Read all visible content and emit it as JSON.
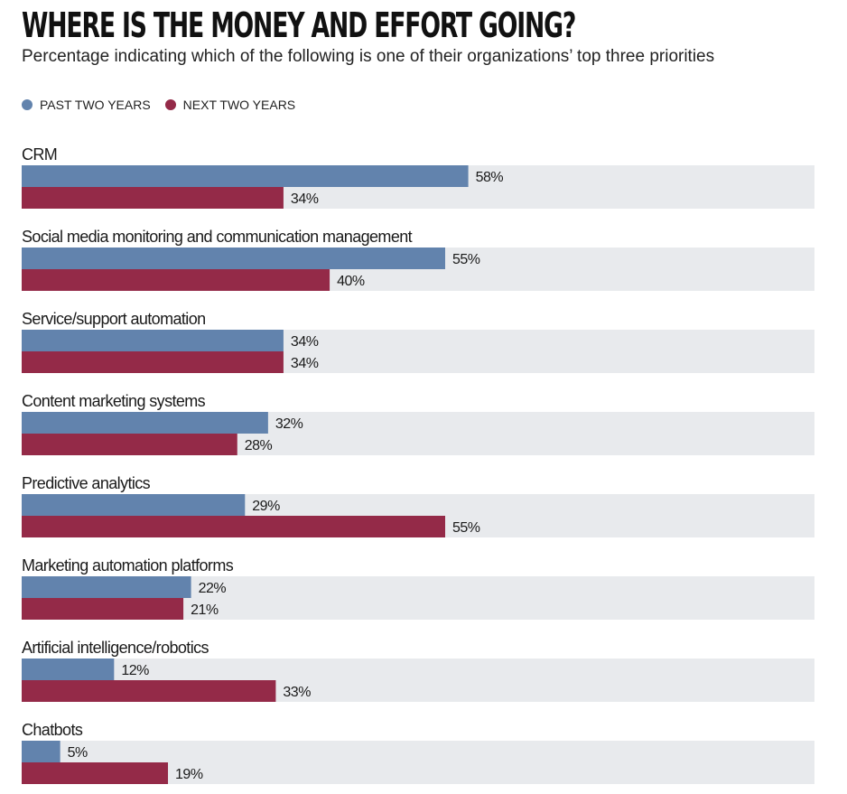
{
  "chart_data": {
    "type": "bar",
    "orientation": "horizontal",
    "title": "WHERE IS THE MONEY AND EFFORT GOING?",
    "subtitle": "Percentage indicating which of the following is one of their organizations’ top three priorities",
    "xlim": [
      0,
      100
    ],
    "categories": [
      "CRM",
      "Social media monitoring and communication management",
      "Service/support automation",
      "Content marketing systems",
      "Predictive analytics",
      "Marketing automation platforms",
      "Artificial intelligence/robotics",
      "Chatbots"
    ],
    "series": [
      {
        "name": "PAST TWO YEARS",
        "values": [
          58,
          55,
          34,
          32,
          29,
          22,
          12,
          5
        ],
        "labels": [
          "58%",
          "55%",
          "34%",
          "32%",
          "29%",
          "22%",
          "12%",
          "5%"
        ],
        "color": "#6283ad"
      },
      {
        "name": "NEXT TWO YEARS",
        "values": [
          34,
          40,
          34,
          28,
          55,
          21,
          33,
          19
        ],
        "labels": [
          "34%",
          "40%",
          "34%",
          "28%",
          "55%",
          "21%",
          "33%",
          "19%"
        ],
        "color": "#942a48"
      }
    ],
    "track_color": "#e8eaed",
    "legend": "top-left",
    "grid": false
  }
}
